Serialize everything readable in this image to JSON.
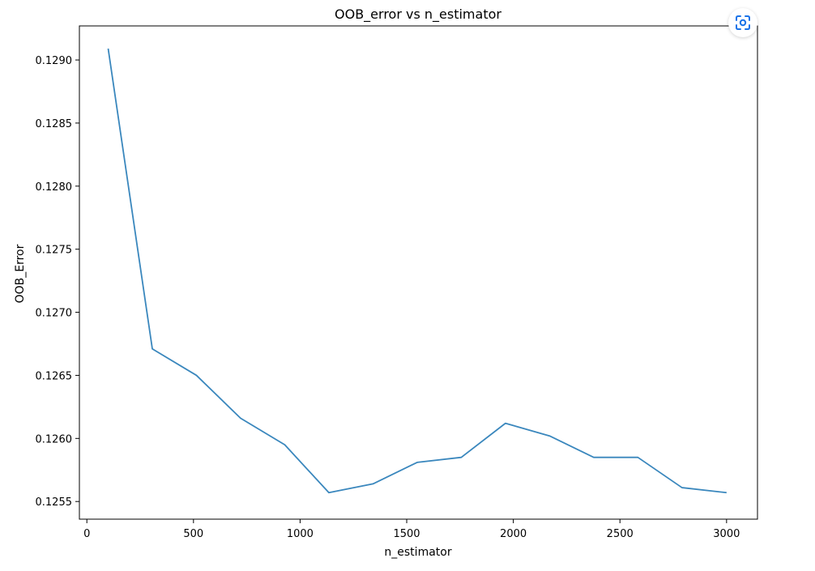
{
  "chart_data": {
    "type": "line",
    "title": "OOB_error vs n_estimator",
    "xlabel": "n_estimator",
    "ylabel": "OOB_Error",
    "xlim": [
      -35,
      3145
    ],
    "ylim": [
      0.12536,
      0.12927
    ],
    "xticks": [
      0,
      500,
      1000,
      1500,
      2000,
      2500,
      3000
    ],
    "xtick_labels": [
      "0",
      "500",
      "1000",
      "1500",
      "2000",
      "2500",
      "3000"
    ],
    "yticks": [
      0.1255,
      0.126,
      0.1265,
      0.127,
      0.1275,
      0.128,
      0.1285,
      0.129
    ],
    "ytick_labels": [
      "0.1255",
      "0.1260",
      "0.1265",
      "0.1270",
      "0.1275",
      "0.1280",
      "0.1285",
      "0.1290"
    ],
    "grid": false,
    "series": [
      {
        "color": "#3a87bd",
        "x": [
          100,
          307,
          514,
          721,
          928,
          1135,
          1342,
          1549,
          1756,
          1963,
          2170,
          2377,
          2584,
          2791,
          3000
        ],
        "y": [
          0.12909,
          0.12671,
          0.1265,
          0.12616,
          0.12595,
          0.12557,
          0.12564,
          0.12581,
          0.12585,
          0.12612,
          0.12602,
          0.12585,
          0.12585,
          0.12561,
          0.12557
        ]
      }
    ]
  },
  "ui": {
    "lens_icon": "lens-icon",
    "lens_color": "#1a73e8"
  }
}
